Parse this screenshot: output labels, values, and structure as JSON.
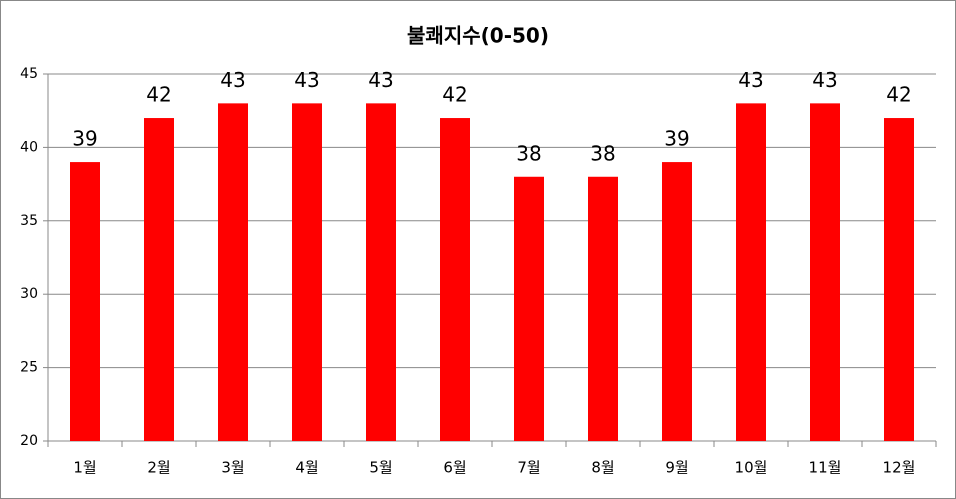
{
  "chart_data": {
    "type": "bar",
    "title": "불쾌지수(0-50)",
    "categories": [
      "1월",
      "2월",
      "3월",
      "4월",
      "5월",
      "6월",
      "7월",
      "8월",
      "9월",
      "10월",
      "11월",
      "12월"
    ],
    "values": [
      39,
      42,
      43,
      43,
      43,
      42,
      38,
      38,
      39,
      43,
      43,
      42
    ],
    "color": "#ff0000",
    "ylim": [
      20,
      45
    ],
    "yticks": [
      20,
      25,
      30,
      35,
      40,
      45
    ],
    "grid": true
  }
}
